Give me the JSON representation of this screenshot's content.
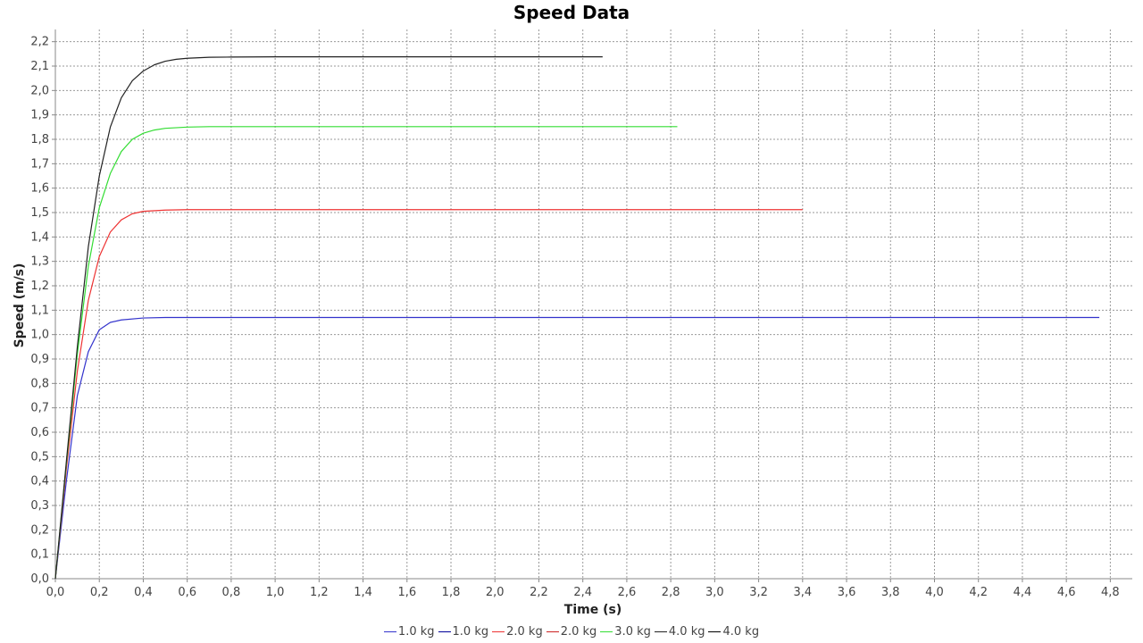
{
  "chart_data": {
    "type": "line",
    "title": "Speed Data",
    "xlabel": "Time (s)",
    "ylabel": "Speed (m/s)",
    "xlim": [
      0,
      4.9
    ],
    "ylim": [
      0,
      2.25
    ],
    "grid": true,
    "legend_position": "bottom",
    "x_ticks": [
      "0,0",
      "0,2",
      "0,4",
      "0,6",
      "0,8",
      "1,0",
      "1,2",
      "1,4",
      "1,6",
      "1,8",
      "2,0",
      "2,2",
      "2,4",
      "2,6",
      "2,8",
      "3,0",
      "3,2",
      "3,4",
      "3,6",
      "3,8",
      "4,0",
      "4,2",
      "4,4",
      "4,6",
      "4,8"
    ],
    "y_ticks": [
      "0,0",
      "0,1",
      "0,2",
      "0,3",
      "0,4",
      "0,5",
      "0,6",
      "0,7",
      "0,8",
      "0,9",
      "1,0",
      "1,1",
      "1,2",
      "1,3",
      "1,4",
      "1,5",
      "1,6",
      "1,7",
      "1,8",
      "1,9",
      "2,0",
      "2,1",
      "2,2"
    ],
    "series": [
      {
        "name": "1.0 kg",
        "color": "#3333cc",
        "x": [
          0,
          0.05,
          0.1,
          0.15,
          0.2,
          0.25,
          0.3,
          0.4,
          0.5,
          1.0,
          2.0,
          3.0,
          4.0,
          4.75
        ],
        "y": [
          0,
          0.4,
          0.75,
          0.93,
          1.02,
          1.05,
          1.06,
          1.068,
          1.07,
          1.07,
          1.07,
          1.07,
          1.07,
          1.07
        ]
      },
      {
        "name": "1.0 kg",
        "color": "#000099",
        "x": [],
        "y": []
      },
      {
        "name": "2.0 kg",
        "color": "#ee3333",
        "x": [
          0,
          0.05,
          0.1,
          0.15,
          0.2,
          0.25,
          0.3,
          0.35,
          0.4,
          0.5,
          0.6,
          1.0,
          2.0,
          3.0,
          3.4
        ],
        "y": [
          0,
          0.45,
          0.85,
          1.14,
          1.32,
          1.42,
          1.47,
          1.495,
          1.505,
          1.51,
          1.512,
          1.512,
          1.512,
          1.512,
          1.512
        ]
      },
      {
        "name": "2.0 kg",
        "color": "#cc2222",
        "x": [],
        "y": []
      },
      {
        "name": "3.0 kg",
        "color": "#33dd33",
        "x": [
          0,
          0.05,
          0.1,
          0.15,
          0.2,
          0.25,
          0.3,
          0.35,
          0.4,
          0.45,
          0.5,
          0.6,
          0.7,
          1.0,
          2.0,
          2.83
        ],
        "y": [
          0,
          0.47,
          0.92,
          1.28,
          1.52,
          1.66,
          1.75,
          1.8,
          1.825,
          1.838,
          1.845,
          1.85,
          1.852,
          1.852,
          1.852,
          1.852
        ]
      },
      {
        "name": "4.0 kg",
        "color": "#222222",
        "x": [
          0,
          0.05,
          0.1,
          0.15,
          0.2,
          0.25,
          0.3,
          0.35,
          0.4,
          0.45,
          0.5,
          0.55,
          0.6,
          0.7,
          0.8,
          1.0,
          2.0,
          2.49
        ],
        "y": [
          0,
          0.48,
          0.95,
          1.36,
          1.65,
          1.85,
          1.97,
          2.04,
          2.08,
          2.105,
          2.12,
          2.128,
          2.132,
          2.136,
          2.137,
          2.138,
          2.138,
          2.138
        ]
      },
      {
        "name": "4.0 kg",
        "color": "#000000",
        "x": [],
        "y": []
      }
    ]
  }
}
